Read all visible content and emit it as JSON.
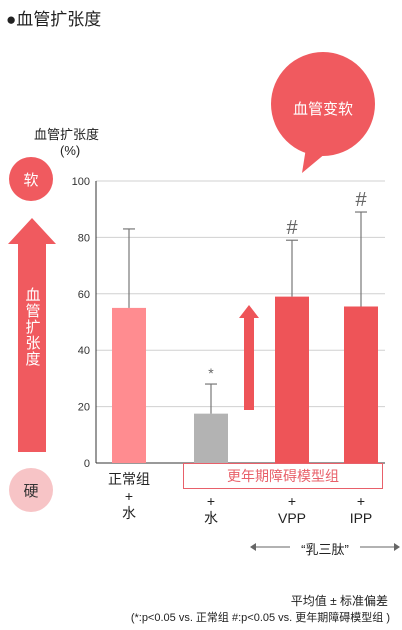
{
  "title": "●血管扩张度",
  "bubble_label": "血管变软",
  "y_unit_line1": "血管扩张度",
  "y_unit_line2": "(%)",
  "soft_label": "软",
  "hard_label": "硬",
  "arrow_label": "血管扩张度",
  "model_group_label": "更年期障碍模型组",
  "x_labels": [
    {
      "name": "正常组",
      "plus": "+",
      "sub": "水"
    },
    {
      "name": "",
      "plus": "+",
      "sub": "水"
    },
    {
      "name": "",
      "plus": "+",
      "sub": "VPP"
    },
    {
      "name": "",
      "plus": "+",
      "sub": "IPP"
    }
  ],
  "peptide_label": "“乳三肽”",
  "footnote_line1": "平均值 ± 标准偏差",
  "footnote_line2": "(*:p<0.05 vs. 正常组  #:p<0.05 vs. 更年期障碍模型组 )",
  "colors": {
    "normal": "#ff8c90",
    "model_water": "#b3b3b3",
    "vpp": "#ee5458",
    "ipp": "#ee5458",
    "accent": "#f05a5f",
    "soft_pink": "#f7c4c6"
  },
  "chart_data": {
    "type": "bar",
    "categories": [
      "正常组 + 水",
      "+ 水",
      "+ VPP",
      "+ IPP"
    ],
    "values": [
      55,
      17.5,
      59,
      55.5
    ],
    "error_upper": [
      83,
      28,
      79,
      89
    ],
    "significance_marks": [
      "",
      "*",
      "#",
      "#"
    ],
    "ylim": [
      0,
      100
    ],
    "yticks": [
      0,
      20,
      40,
      60,
      80,
      100
    ],
    "grid": true
  }
}
